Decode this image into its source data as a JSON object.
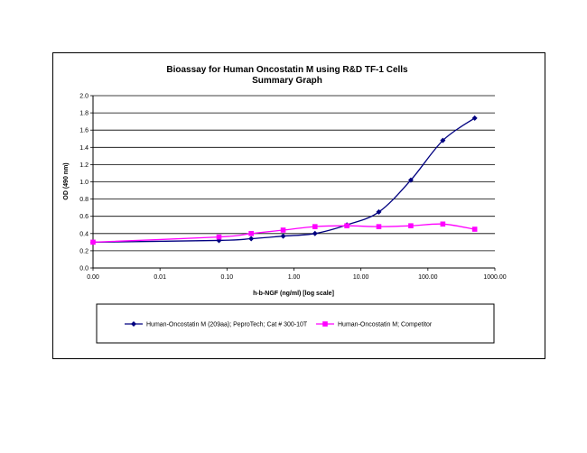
{
  "chart_data": {
    "type": "line",
    "title": "Bioassay for Human Oncostatin M using R&D TF-1 Cells",
    "subtitle": "Summary Graph",
    "xlabel": "h-b-NGF (ng/ml) [log scale]",
    "ylabel": "OD (490 nm)",
    "xscale": "log",
    "xlim": [
      0.001,
      1000
    ],
    "ylim": [
      0,
      2.0
    ],
    "x_tick_labels": [
      "0.00",
      "0.01",
      "0.10",
      "1.00",
      "10.00",
      "100.00",
      "1000.00"
    ],
    "y_tick_labels": [
      "0.0",
      "0.2",
      "0.4",
      "0.6",
      "0.8",
      "1.0",
      "1.2",
      "1.4",
      "1.6",
      "1.8",
      "2.0"
    ],
    "grid": "horizontal",
    "legend_position": "bottom",
    "series": [
      {
        "name": "Human-Oncostatin M (209aa); PeproTech; Cat # 300-10T",
        "color": "#000080",
        "marker": "diamond",
        "x": [
          0.001,
          0.076,
          0.23,
          0.69,
          2.06,
          6.17,
          18.5,
          55.6,
          167,
          500
        ],
        "y": [
          0.3,
          0.32,
          0.34,
          0.37,
          0.4,
          0.5,
          0.65,
          1.02,
          1.48,
          1.74
        ]
      },
      {
        "name": "Human-Oncostatin M; Competitor",
        "color": "#ff00ff",
        "marker": "square",
        "x": [
          0.001,
          0.076,
          0.23,
          0.69,
          2.06,
          6.17,
          18.5,
          55.6,
          167,
          500
        ],
        "y": [
          0.3,
          0.36,
          0.4,
          0.44,
          0.48,
          0.49,
          0.48,
          0.49,
          0.51,
          0.45
        ]
      }
    ]
  }
}
